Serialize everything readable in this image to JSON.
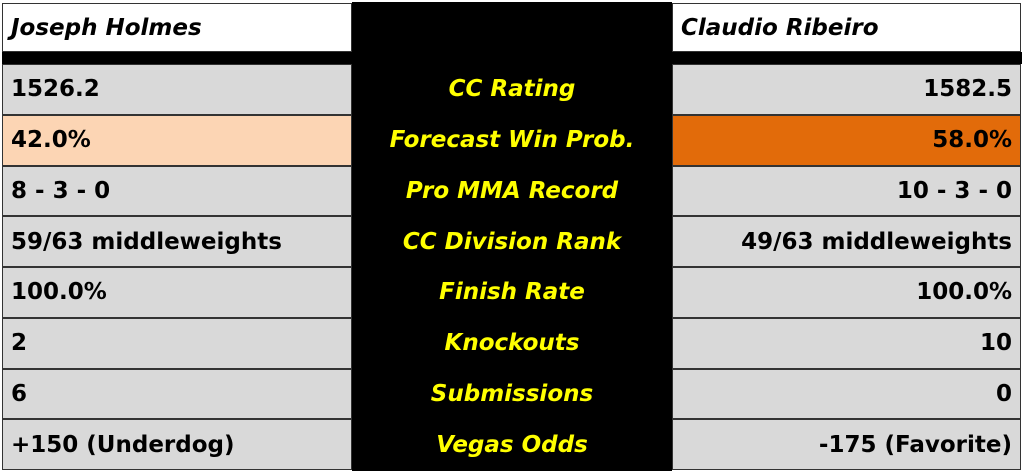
{
  "fighters": {
    "left": "Joseph Holmes",
    "right": "Claudio Ribeiro"
  },
  "colors": {
    "label_text": "#ffff00",
    "label_bg": "#000000",
    "cell_bg": "#d9d9d9",
    "underdog_prob_bg": "#fcd5b4",
    "favorite_prob_bg": "#e26b0a"
  },
  "rows": [
    {
      "label": "CC Rating",
      "left": "1526.2",
      "right": "1582.5"
    },
    {
      "label": "Forecast Win Prob.",
      "left": "42.0%",
      "right": "58.0%"
    },
    {
      "label": "Pro MMA Record",
      "left": "8 - 3 - 0",
      "right": "10 - 3 - 0"
    },
    {
      "label": "CC Division Rank",
      "left": "59/63 middleweights",
      "right": "49/63 middleweights"
    },
    {
      "label": "Finish Rate",
      "left": "100.0%",
      "right": "100.0%"
    },
    {
      "label": "Knockouts",
      "left": "2",
      "right": "10"
    },
    {
      "label": "Submissions",
      "left": "6",
      "right": "0"
    },
    {
      "label": "Vegas Odds",
      "left": "+150 (Underdog)",
      "right": "-175 (Favorite)"
    }
  ]
}
